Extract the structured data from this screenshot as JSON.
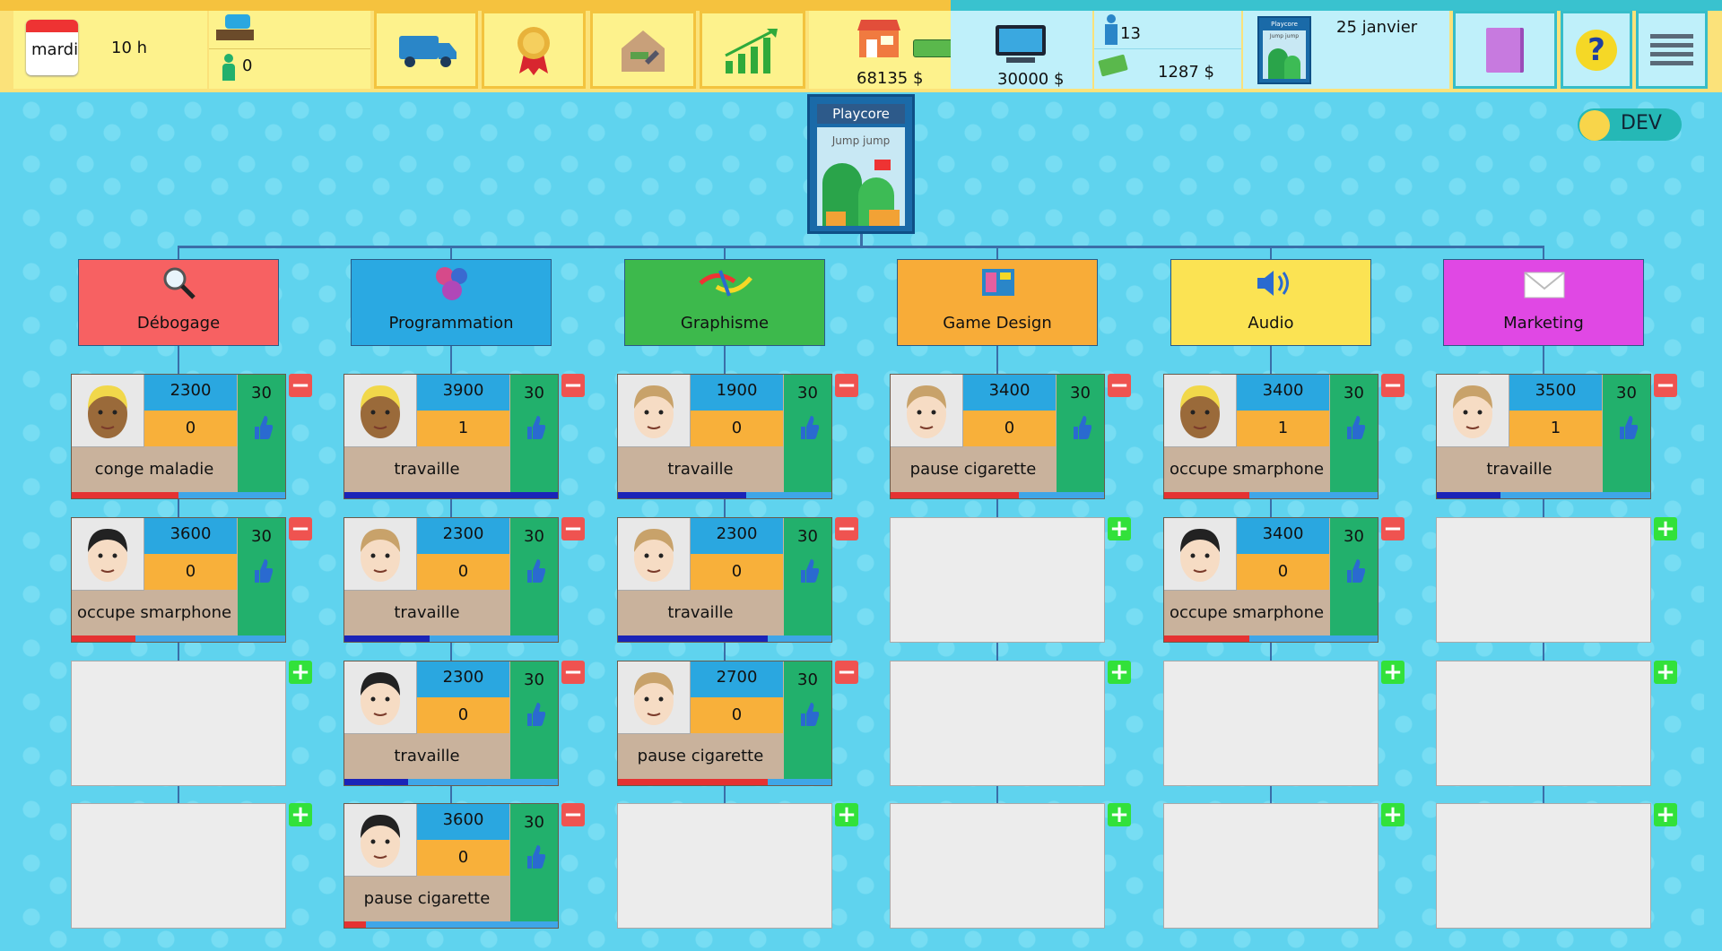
{
  "topbar": {
    "day": "mardi",
    "hour": "10 h",
    "waiting_count": "0",
    "money": "68135 $",
    "goal_money": "30000 $",
    "employees_count": "13",
    "salary_total": "1287 $",
    "date": "25 janvier",
    "game_cover_title": "Playcore",
    "game_cover_sub": "Jump jump",
    "icons": [
      "calendar-icon",
      "desk-icon",
      "person-icon",
      "truck-icon",
      "award-icon",
      "house-paint-icon",
      "growth-chart-icon",
      "shop-icon",
      "money-icon",
      "computer-icon",
      "employee-icon",
      "cash-icon",
      "game-cover-icon",
      "book-icon",
      "help-icon",
      "menu-icon"
    ]
  },
  "game": {
    "title": "Playcore",
    "subtitle": "Jump jump"
  },
  "dev_toggle": {
    "label": "DEV"
  },
  "colors": {
    "Débogage": "#f76162",
    "Programmation": "#2aa9e2",
    "Graphisme": "#3db94c",
    "Game Design": "#f8ac38",
    "Audio": "#fbe353",
    "Marketing": "#e048e4"
  },
  "departments": [
    {
      "name": "Débogage",
      "icon": "magnifier-icon",
      "color": "#f76162",
      "slots": [
        {
          "filled": true,
          "salary": "2300",
          "level": "0",
          "morale": "30",
          "status": "conge maladie",
          "progress": 0.5,
          "bar": "#e53232"
        },
        {
          "filled": true,
          "salary": "3600",
          "level": "0",
          "morale": "30",
          "status": "occupe smarphone",
          "progress": 0.3,
          "bar": "#e53232"
        },
        {
          "filled": false
        },
        {
          "filled": false
        }
      ]
    },
    {
      "name": "Programmation",
      "icon": "code-bubbles-icon",
      "color": "#2aa9e2",
      "slots": [
        {
          "filled": true,
          "salary": "3900",
          "level": "1",
          "morale": "30",
          "status": "travaille",
          "progress": 1.0,
          "bar": "#1a24b8"
        },
        {
          "filled": true,
          "salary": "2300",
          "level": "0",
          "morale": "30",
          "status": "travaille",
          "progress": 0.4,
          "bar": "#1a24b8"
        },
        {
          "filled": true,
          "salary": "2300",
          "level": "0",
          "morale": "30",
          "status": "travaille",
          "progress": 0.3,
          "bar": "#1a24b8"
        },
        {
          "filled": true,
          "salary": "3600",
          "level": "0",
          "morale": "30",
          "status": "pause cigarette",
          "progress": 0.1,
          "bar": "#e53232"
        }
      ]
    },
    {
      "name": "Graphisme",
      "icon": "brush-icon",
      "color": "#3db94c",
      "slots": [
        {
          "filled": true,
          "salary": "1900",
          "level": "0",
          "morale": "30",
          "status": "travaille",
          "progress": 0.6,
          "bar": "#1a24b8"
        },
        {
          "filled": true,
          "salary": "2300",
          "level": "0",
          "morale": "30",
          "status": "travaille",
          "progress": 0.7,
          "bar": "#1a24b8"
        },
        {
          "filled": true,
          "salary": "2700",
          "level": "0",
          "morale": "30",
          "status": "pause cigarette",
          "progress": 0.7,
          "bar": "#e53232"
        },
        {
          "filled": false
        }
      ]
    },
    {
      "name": "Game Design",
      "icon": "layout-icon",
      "color": "#f8ac38",
      "slots": [
        {
          "filled": true,
          "salary": "3400",
          "level": "0",
          "morale": "30",
          "status": "pause cigarette",
          "progress": 0.6,
          "bar": "#e53232"
        },
        {
          "filled": false
        },
        {
          "filled": false
        },
        {
          "filled": false
        }
      ]
    },
    {
      "name": "Audio",
      "icon": "speaker-icon",
      "color": "#fbe353",
      "slots": [
        {
          "filled": true,
          "salary": "3400",
          "level": "1",
          "morale": "30",
          "status": "occupe smarphone",
          "progress": 0.4,
          "bar": "#e53232"
        },
        {
          "filled": true,
          "salary": "3400",
          "level": "0",
          "morale": "30",
          "status": "occupe smarphone",
          "progress": 0.4,
          "bar": "#e53232"
        },
        {
          "filled": false
        },
        {
          "filled": false
        }
      ]
    },
    {
      "name": "Marketing",
      "icon": "envelope-icon",
      "color": "#e048e4",
      "slots": [
        {
          "filled": true,
          "salary": "3500",
          "level": "1",
          "morale": "30",
          "status": "travaille",
          "progress": 0.3,
          "bar": "#1a24b8"
        },
        {
          "filled": false
        },
        {
          "filled": false
        },
        {
          "filled": false
        }
      ]
    }
  ]
}
